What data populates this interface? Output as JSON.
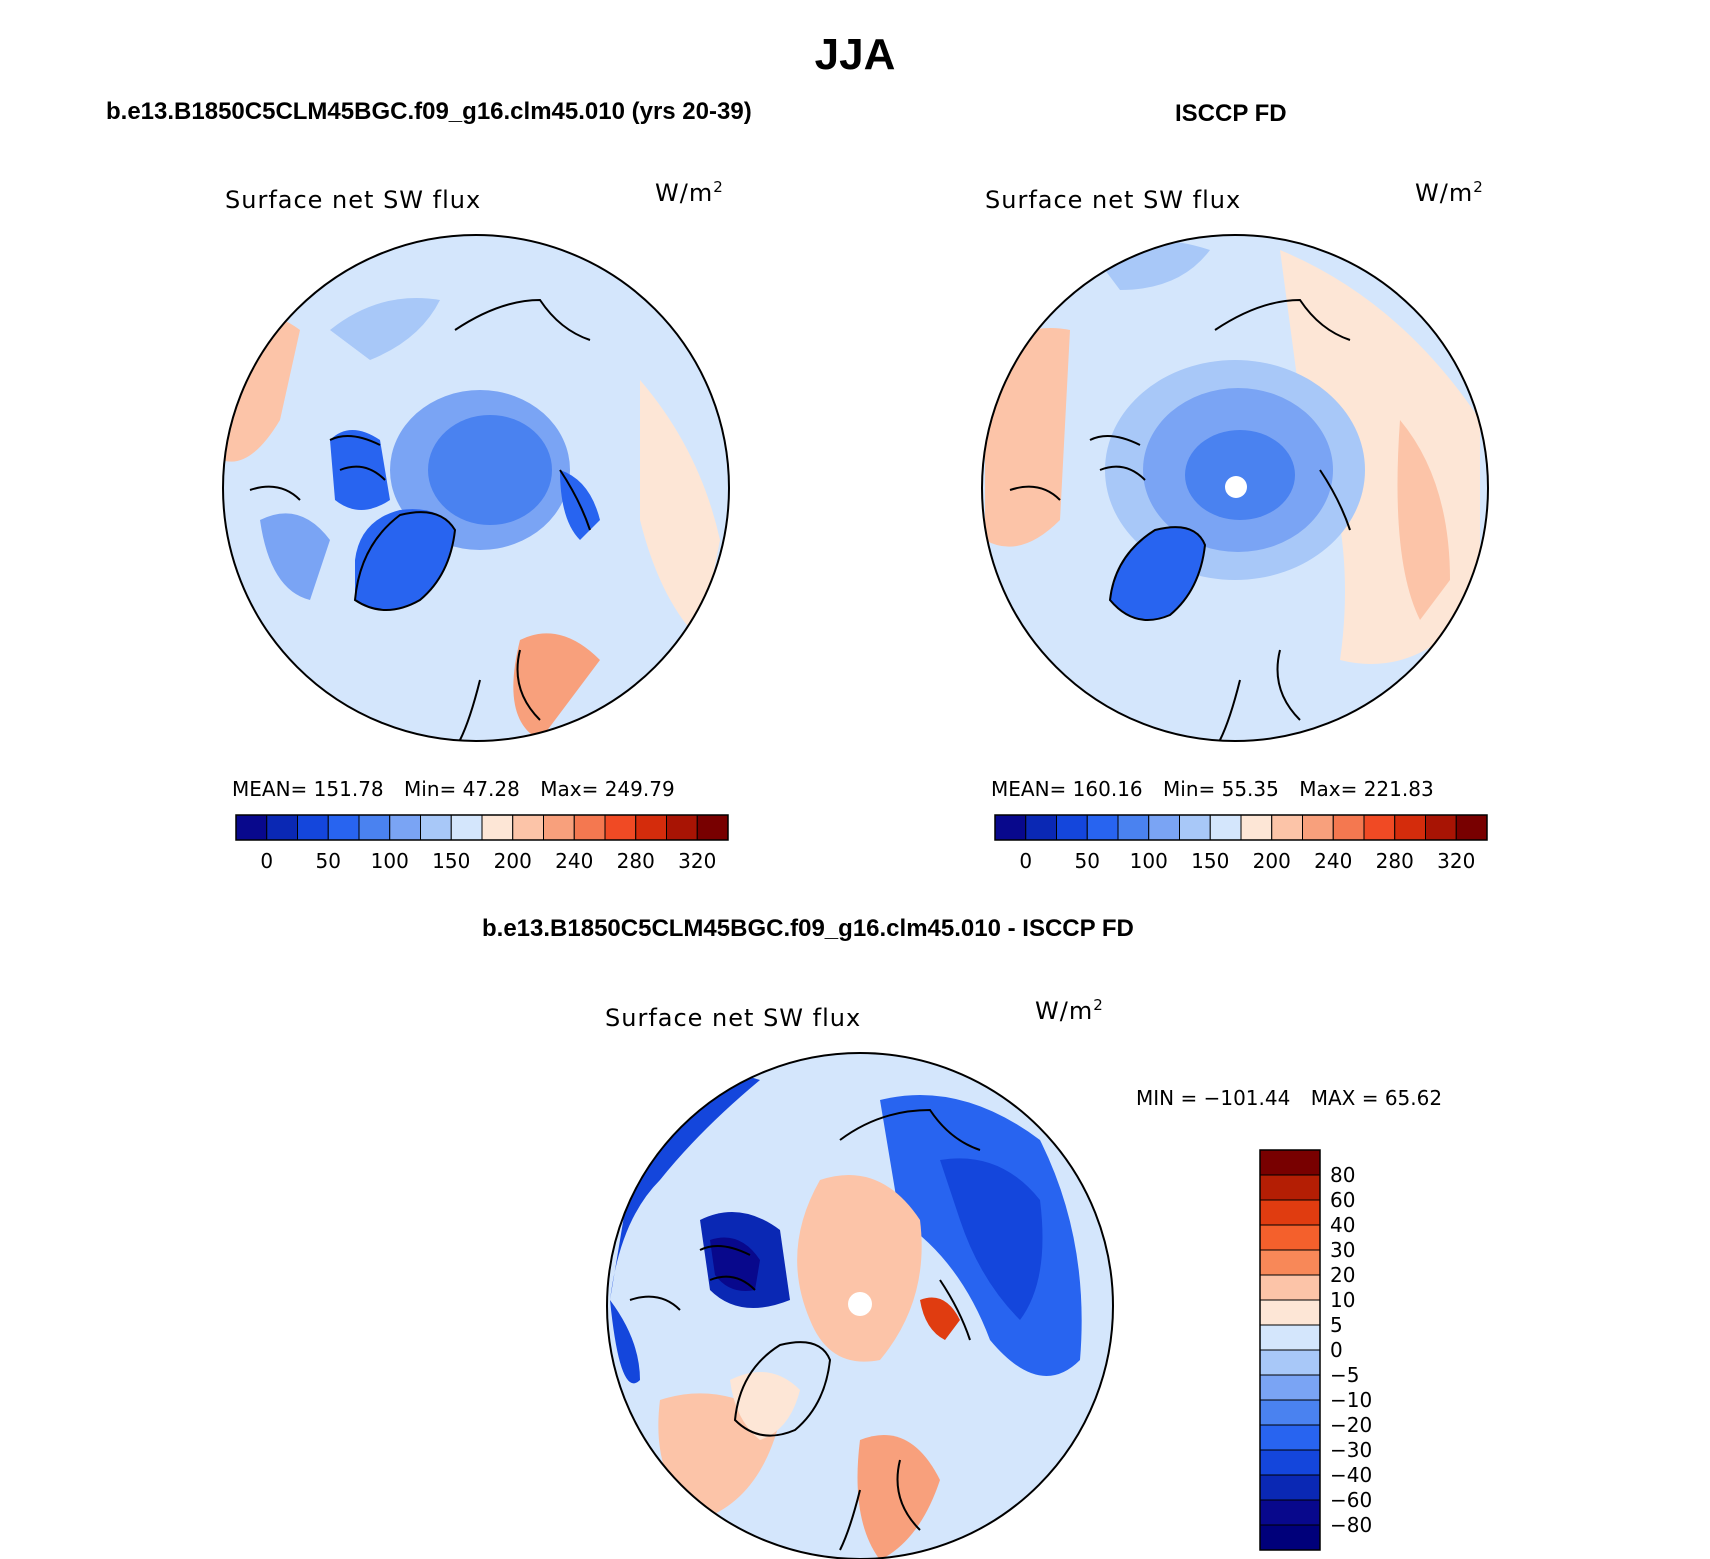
{
  "figure_title": "JJA",
  "panels": {
    "model": {
      "heading": "b.e13.B1850C5CLM45BGC.f09_g16.clm45.010 (yrs 20-39)",
      "variable": "Surface net SW flux",
      "units": "W/m",
      "units_exp": "2",
      "stats": {
        "mean_label": "MEAN=",
        "mean": "151.78",
        "min_label": "Min=",
        "min": "47.28",
        "max_label": "Max=",
        "max": "249.79"
      }
    },
    "obs": {
      "heading": "ISCCP FD",
      "variable": "Surface net SW flux",
      "units": "W/m",
      "units_exp": "2",
      "stats": {
        "mean_label": "MEAN=",
        "mean": "160.16",
        "min_label": "Min=",
        "min": "55.35",
        "max_label": "Max=",
        "max": "221.83"
      }
    },
    "diff": {
      "heading": "b.e13.B1850C5CLM45BGC.f09_g16.clm45.010 - ISCCP FD",
      "variable": "Surface net SW flux",
      "units": "W/m",
      "units_exp": "2",
      "stats": {
        "min_label": "MIN =",
        "min": "−101.44",
        "max_label": "MAX =",
        "max": "65.62"
      }
    }
  },
  "chart_data": [
    {
      "type": "heatmap",
      "projection": "north-polar-stereographic",
      "title": "Surface net SW flux",
      "units": "W/m2",
      "colorbar": {
        "orientation": "horizontal",
        "ticks": [
          "0",
          "50",
          "100",
          "150",
          "200",
          "240",
          "280",
          "320"
        ],
        "levels": [
          0,
          25,
          50,
          75,
          100,
          125,
          150,
          175,
          200,
          220,
          240,
          260,
          280,
          300,
          320
        ],
        "colors": [
          "#08088c",
          "#0a28b4",
          "#1446dc",
          "#2864f0",
          "#4a82f0",
          "#7aa4f4",
          "#a8c8f8",
          "#d4e6fc",
          "#fde6d6",
          "#fcc4a8",
          "#f8a07c",
          "#f47850",
          "#f04a24",
          "#d42c0c",
          "#a81404",
          "#780000"
        ]
      },
      "stats": {
        "mean": 151.78,
        "min": 47.28,
        "max": 249.79
      }
    },
    {
      "type": "heatmap",
      "projection": "north-polar-stereographic",
      "title": "Surface net SW flux",
      "units": "W/m2",
      "colorbar": {
        "orientation": "horizontal",
        "ticks": [
          "0",
          "50",
          "100",
          "150",
          "200",
          "240",
          "280",
          "320"
        ],
        "levels": [
          0,
          25,
          50,
          75,
          100,
          125,
          150,
          175,
          200,
          220,
          240,
          260,
          280,
          300,
          320
        ],
        "colors": [
          "#08088c",
          "#0a28b4",
          "#1446dc",
          "#2864f0",
          "#4a82f0",
          "#7aa4f4",
          "#a8c8f8",
          "#d4e6fc",
          "#fde6d6",
          "#fcc4a8",
          "#f8a07c",
          "#f47850",
          "#f04a24",
          "#d42c0c",
          "#a81404",
          "#780000"
        ]
      },
      "stats": {
        "mean": 160.16,
        "min": 55.35,
        "max": 221.83
      }
    },
    {
      "type": "heatmap",
      "projection": "north-polar-stereographic",
      "title": "Surface net SW flux",
      "units": "W/m2",
      "colorbar": {
        "orientation": "vertical",
        "ticks": [
          "80",
          "60",
          "40",
          "30",
          "20",
          "10",
          "5",
          "0",
          "−5",
          "−10",
          "−20",
          "−30",
          "−40",
          "−60",
          "−80"
        ],
        "colors": [
          "#780000",
          "#b41e04",
          "#e03c10",
          "#f4602c",
          "#f88858",
          "#fcc4a8",
          "#fde6d6",
          "#d4e6fc",
          "#a8c8f8",
          "#7aa4f4",
          "#4a82f0",
          "#2864f0",
          "#1446dc",
          "#0a28b4",
          "#08088c",
          "#00007a"
        ]
      },
      "stats": {
        "min": -101.44,
        "max": 65.62
      }
    }
  ]
}
